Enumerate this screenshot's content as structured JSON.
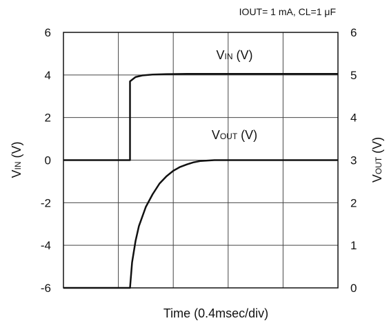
{
  "chart_data": {
    "type": "line",
    "annotation": "IOUT= 1 mA,  CL=1 μF",
    "xlabel": "Time (0.4msec/div)",
    "x_divisions": 5,
    "y_left": {
      "label_main": "V",
      "label_sub": "IN",
      "label_unit": " (V)",
      "ylim": [
        -6,
        6
      ],
      "ticks": [
        "6",
        "4",
        "2",
        "0",
        "-2",
        "-4",
        "-6"
      ]
    },
    "y_right": {
      "label_main": "V",
      "label_sub": "OUT",
      "label_unit": " (V)",
      "ylim": [
        0,
        6
      ],
      "ticks": [
        "6",
        "5",
        "4",
        "3",
        "2",
        "1",
        "0"
      ]
    },
    "grid": true,
    "series": [
      {
        "name": "VIN (V)",
        "axis": "left",
        "x": [
          0,
          0.97,
          0.97,
          1.05,
          1.15,
          1.3,
          1.5,
          1.8,
          2.5,
          4.0
        ],
        "y": [
          0,
          0,
          3.7,
          3.9,
          3.98,
          4.02,
          4.04,
          4.05,
          4.05,
          4.05
        ]
      },
      {
        "name": "VOUT (V)",
        "axis": "right",
        "x": [
          0,
          0.97,
          0.97,
          1.0,
          1.05,
          1.1,
          1.2,
          1.3,
          1.4,
          1.5,
          1.6,
          1.7,
          1.8,
          1.9,
          2.0,
          2.2,
          2.5,
          4.0
        ],
        "y": [
          0,
          0,
          0,
          0.6,
          1.1,
          1.45,
          1.9,
          2.2,
          2.45,
          2.62,
          2.75,
          2.84,
          2.9,
          2.95,
          2.98,
          3.0,
          3.0,
          3.0
        ]
      }
    ]
  }
}
